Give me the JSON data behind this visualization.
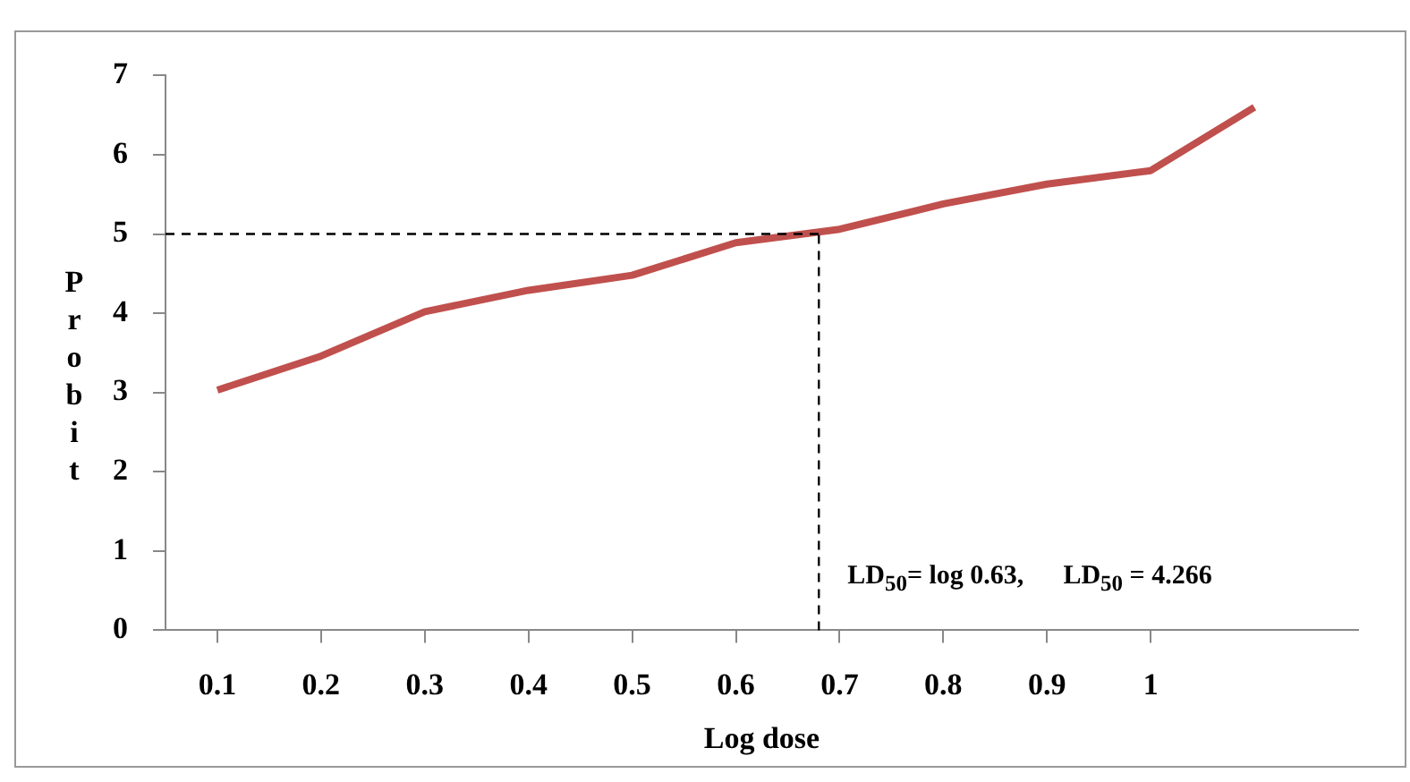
{
  "chart_data": {
    "type": "line",
    "xlabel": "Log dose",
    "ylabel": "Probit",
    "x": [
      0.1,
      0.2,
      0.3,
      0.4,
      0.5,
      0.6,
      0.7,
      0.8,
      0.9,
      1.0,
      1.1
    ],
    "series": [
      {
        "color": "#c0504d",
        "values": [
          3.03,
          3.46,
          4.02,
          4.29,
          4.48,
          4.89,
          5.06,
          5.38,
          5.63,
          5.8,
          6.6
        ]
      }
    ],
    "xlim": [
      0.05,
      1.2
    ],
    "xticks": [
      0.1,
      0.2,
      0.3,
      0.4,
      0.5,
      0.6,
      0.7,
      0.8,
      0.9,
      1
    ],
    "ylim": [
      0,
      7
    ],
    "yticks": [
      0,
      1,
      2,
      3,
      4,
      5,
      6,
      7
    ],
    "grid": false,
    "legend": false,
    "marker": "none",
    "line_style": "solid",
    "ref_lines": [
      {
        "axis": "y",
        "value": 5,
        "color": "#000000",
        "line_style": "dashed"
      },
      {
        "axis": "x",
        "value": 0.68,
        "color": "#000000",
        "line_style": "dashed"
      }
    ],
    "annotations": [
      "LD$_{50}$= log 0.63,",
      "LD$_{50}$ = 4.266"
    ]
  }
}
